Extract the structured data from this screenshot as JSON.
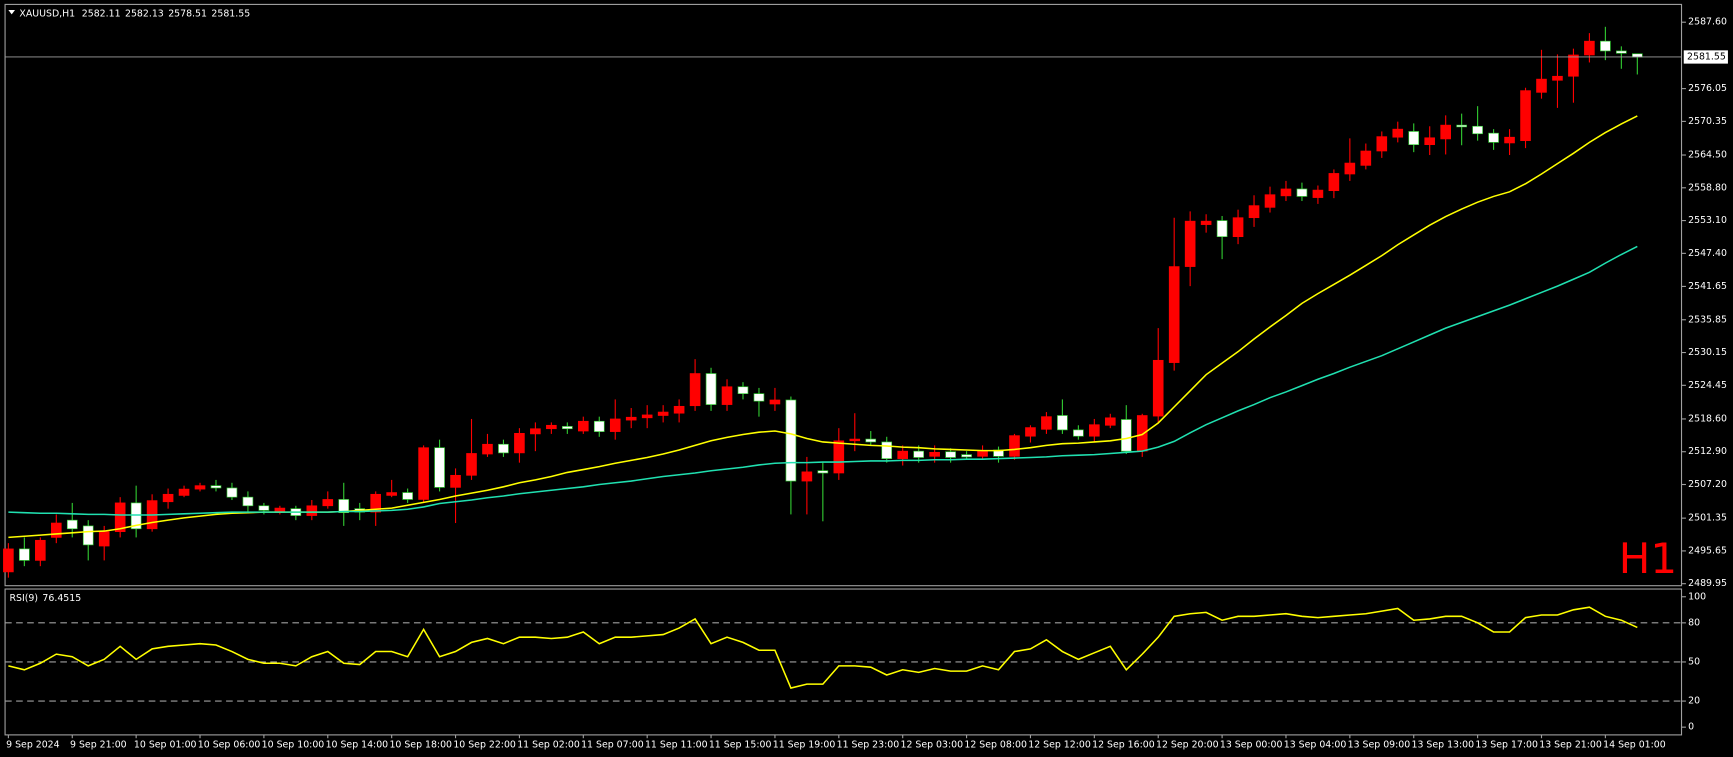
{
  "chart_data": [
    {
      "type": "candlestick",
      "title": "XAUUSD,H1",
      "watermark": "H1",
      "up_color": "#ff0000",
      "down_color": "#ffffff",
      "down_wick_color": "#32cd32",
      "price_line_color": "#a0a0a0",
      "categories": [
        "9 Sep 2024",
        null,
        null,
        null,
        "9 Sep 21:00",
        null,
        null,
        null,
        "10 Sep 01:00",
        null,
        null,
        null,
        "10 Sep 06:00",
        null,
        null,
        null,
        "10 Sep 10:00",
        null,
        null,
        null,
        "10 Sep 14:00",
        null,
        null,
        null,
        "10 Sep 18:00",
        null,
        null,
        null,
        "10 Sep 22:00",
        null,
        null,
        null,
        "11 Sep 02:00",
        null,
        null,
        null,
        "11 Sep 07:00",
        null,
        null,
        null,
        "11 Sep 11:00",
        null,
        null,
        null,
        "11 Sep 15:00",
        null,
        null,
        null,
        "11 Sep 19:00",
        null,
        null,
        null,
        "11 Sep 23:00",
        null,
        null,
        null,
        "12 Sep 03:00",
        null,
        null,
        null,
        "12 Sep 08:00",
        null,
        null,
        null,
        "12 Sep 12:00",
        null,
        null,
        null,
        "12 Sep 16:00",
        null,
        null,
        null,
        "12 Sep 20:00",
        null,
        null,
        null,
        "13 Sep 00:00",
        null,
        null,
        null,
        "13 Sep 04:00",
        null,
        null,
        null,
        "13 Sep 09:00",
        null,
        null,
        null,
        "13 Sep 13:00",
        null,
        null,
        null,
        "13 Sep 17:00",
        null,
        null,
        null,
        "13 Sep 21:00",
        null,
        null,
        null,
        "14 Sep 01:00",
        null,
        null
      ],
      "open": [
        2492,
        2496,
        2494,
        2498,
        2501,
        2500,
        2496.5,
        2499,
        2504,
        2499.5,
        2504.2,
        2505.3,
        2506.4,
        2507,
        2506.6,
        2505,
        2503.5,
        2502.5,
        2503,
        2501.8,
        2503.5,
        2504.6,
        2503,
        2502.4,
        2505.3,
        2505.8,
        2504.6,
        2513.6,
        2506.7,
        2508.8,
        2512.5,
        2514.2,
        2512.7,
        2516,
        2516.9,
        2517.3,
        2516.5,
        2518.2,
        2516.4,
        2518.4,
        2518.8,
        2519.2,
        2519.6,
        2520.9,
        2526.5,
        2521.1,
        2524.2,
        2523,
        2521.2,
        2521.9,
        2507.8,
        2509.6,
        2509.2,
        2514.8,
        2515.1,
        2514.6,
        2511.7,
        2513,
        2512.1,
        2512.9,
        2512.4,
        2512.1,
        2513.2,
        2512.1,
        2515.6,
        2516.8,
        2519.2,
        2516.7,
        2515.6,
        2517.5,
        2518.5,
        2513,
        2519.1,
        2528.4,
        2545.1,
        2552.4,
        2553.1,
        2550.3,
        2553.6,
        2555.4,
        2557.4,
        2558.6,
        2557.1,
        2558.3,
        2561.2,
        2562.7,
        2565.2,
        2567.6,
        2568.6,
        2566.3,
        2567.3,
        2569.7,
        2569.5,
        2568.3,
        2566.6,
        2567,
        2575.4,
        2577.5,
        2578.2,
        2581.9,
        2584.3,
        2582.6,
        2582.11
      ],
      "high": [
        2497,
        2498,
        2498,
        2502,
        2504,
        2501,
        2500,
        2505,
        2507,
        2505.5,
        2506.5,
        2507,
        2507.5,
        2508,
        2507.5,
        2506,
        2504,
        2503.5,
        2503.5,
        2504.5,
        2506,
        2507.5,
        2504,
        2506,
        2508,
        2506.5,
        2514,
        2515,
        2510,
        2518.6,
        2516,
        2515,
        2517,
        2518,
        2518,
        2518,
        2519,
        2519,
        2522,
        2520.5,
        2521,
        2521,
        2522,
        2529,
        2527.5,
        2525.5,
        2525,
        2524,
        2524,
        2522.5,
        2512,
        2511,
        2517,
        2519.6,
        2516.5,
        2515.5,
        2514,
        2514,
        2514,
        2513.5,
        2513,
        2514,
        2513.8,
        2516,
        2517.5,
        2519.8,
        2522,
        2517.5,
        2518.6,
        2519.5,
        2521,
        2519.5,
        2534.4,
        2553.6,
        2554.7,
        2554.2,
        2553.9,
        2555,
        2557.5,
        2559,
        2560,
        2559.7,
        2559.2,
        2562,
        2567.4,
        2566.5,
        2568.6,
        2570.3,
        2570,
        2569.5,
        2571.4,
        2571.7,
        2573,
        2569,
        2569,
        2576.2,
        2582.8,
        2582,
        2583,
        2585.7,
        2586.8,
        2583.4,
        2582.13
      ],
      "low": [
        2491,
        2493,
        2493,
        2497,
        2498,
        2494,
        2494,
        2498,
        2498,
        2499,
        2503,
        2505,
        2506,
        2506,
        2504.5,
        2502.5,
        2502,
        2502,
        2501,
        2501,
        2503,
        2500,
        2501,
        2500,
        2505,
        2504,
        2504,
        2506,
        2500.5,
        2508,
        2512,
        2512,
        2511,
        2513,
        2516,
        2516,
        2516,
        2515.5,
        2515,
        2517,
        2517,
        2518,
        2518,
        2520,
        2520,
        2520,
        2522,
        2519,
        2520,
        2502,
        2502,
        2500.8,
        2508,
        2513,
        2514,
        2511,
        2510.5,
        2511,
        2511,
        2511,
        2511.5,
        2511.5,
        2511,
        2511.5,
        2514.5,
        2516,
        2516,
        2515,
        2514.5,
        2517,
        2512.5,
        2512,
        2518,
        2527,
        2541.7,
        2551,
        2546.4,
        2549,
        2552,
        2554.5,
        2556.5,
        2556.5,
        2556,
        2557,
        2560,
        2562,
        2564,
        2566.7,
        2565,
        2564.5,
        2564.6,
        2566.2,
        2567,
        2565.4,
        2564.5,
        2565.7,
        2574.3,
        2572.7,
        2573.6,
        2580.6,
        2581,
        2579.5,
        2578.51
      ],
      "close": [
        2496,
        2494,
        2497.5,
        2500.5,
        2499.5,
        2496.7,
        2499,
        2504,
        2499.5,
        2504.4,
        2505.5,
        2506.4,
        2507,
        2506.6,
        2505,
        2503.5,
        2502.7,
        2503.1,
        2501.8,
        2503.5,
        2504.6,
        2502.3,
        2502.4,
        2505.5,
        2505.8,
        2504.6,
        2513.6,
        2506.7,
        2508.8,
        2512.6,
        2514.2,
        2512.7,
        2516.1,
        2516.9,
        2517.5,
        2516.9,
        2518.2,
        2516.4,
        2518.6,
        2518.9,
        2519.3,
        2519.8,
        2520.8,
        2526.5,
        2521.1,
        2524.2,
        2523,
        2521.7,
        2521.9,
        2507.8,
        2509.4,
        2509.2,
        2514.8,
        2515.1,
        2514.6,
        2511.7,
        2513,
        2511.9,
        2512.8,
        2511.9,
        2512,
        2513,
        2512.1,
        2515.7,
        2517.1,
        2519,
        2516.7,
        2515.6,
        2517.6,
        2518.8,
        2513,
        2519.2,
        2528.8,
        2545.1,
        2553,
        2553,
        2550.3,
        2553.6,
        2555.7,
        2557.6,
        2558.6,
        2557.3,
        2558.4,
        2561.3,
        2563.1,
        2565.2,
        2567.7,
        2569,
        2566.3,
        2567.5,
        2569.7,
        2569.4,
        2568.2,
        2566.7,
        2567.6,
        2575.7,
        2577.7,
        2578.2,
        2581.9,
        2584.3,
        2582.6,
        2582.2,
        2581.55
      ],
      "series": [
        {
          "color": "#ffff00",
          "values": [
            2498.0,
            2498.2,
            2498.4,
            2498.6,
            2498.8,
            2499.0,
            2499.1,
            2499.5,
            2500.1,
            2500.6,
            2501.0,
            2501.4,
            2501.7,
            2502.0,
            2502.2,
            2502.3,
            2502.4,
            2502.4,
            2502.4,
            2502.4,
            2502.4,
            2502.5,
            2502.7,
            2502.9,
            2503.1,
            2503.6,
            2504.1,
            2504.6,
            2505.2,
            2505.7,
            2506.2,
            2506.8,
            2507.5,
            2508.0,
            2508.6,
            2509.3,
            2509.8,
            2510.3,
            2510.9,
            2511.4,
            2511.9,
            2512.5,
            2513.2,
            2514.0,
            2514.8,
            2515.4,
            2515.9,
            2516.3,
            2516.5,
            2516.0,
            2515.2,
            2514.6,
            2514.4,
            2514.2,
            2514.0,
            2513.9,
            2513.7,
            2513.6,
            2513.4,
            2513.3,
            2513.2,
            2513.1,
            2513.1,
            2513.3,
            2513.6,
            2514.0,
            2514.3,
            2514.4,
            2514.6,
            2514.8,
            2515.2,
            2515.9,
            2517.9,
            2520.7,
            2523.5,
            2526.3,
            2528.3,
            2530.3,
            2532.5,
            2534.6,
            2536.6,
            2538.7,
            2540.4,
            2542.0,
            2543.6,
            2545.3,
            2547.0,
            2548.9,
            2550.6,
            2552.3,
            2553.8,
            2555.1,
            2556.3,
            2557.3,
            2558.1,
            2559.5,
            2561.2,
            2563.0,
            2564.8,
            2566.7,
            2568.4,
            2569.9,
            2571.3
          ]
        },
        {
          "color": "#20e0b0",
          "values": [
            2502.4,
            2502.3,
            2502.2,
            2502.2,
            2502.1,
            2502.0,
            2502.0,
            2501.9,
            2501.9,
            2501.9,
            2502.0,
            2502.1,
            2502.2,
            2502.3,
            2502.4,
            2502.4,
            2502.4,
            2502.4,
            2502.4,
            2502.4,
            2502.4,
            2502.5,
            2502.5,
            2502.6,
            2502.7,
            2502.9,
            2503.3,
            2503.9,
            2504.2,
            2504.5,
            2504.9,
            2505.2,
            2505.6,
            2505.9,
            2506.2,
            2506.5,
            2506.8,
            2507.2,
            2507.5,
            2507.8,
            2508.2,
            2508.6,
            2508.9,
            2509.2,
            2509.6,
            2509.9,
            2510.2,
            2510.6,
            2510.9,
            2511.0,
            2511.0,
            2511.1,
            2511.1,
            2511.2,
            2511.3,
            2511.3,
            2511.4,
            2511.4,
            2511.5,
            2511.5,
            2511.6,
            2511.6,
            2511.7,
            2511.8,
            2511.9,
            2512.0,
            2512.2,
            2512.3,
            2512.4,
            2512.6,
            2512.8,
            2513.0,
            2513.7,
            2514.7,
            2516.2,
            2517.6,
            2518.8,
            2520.0,
            2521.1,
            2522.3,
            2523.3,
            2524.4,
            2525.5,
            2526.5,
            2527.6,
            2528.6,
            2529.6,
            2530.8,
            2532.0,
            2533.2,
            2534.4,
            2535.4,
            2536.4,
            2537.4,
            2538.4,
            2539.5,
            2540.6,
            2541.7,
            2542.9,
            2544.1,
            2545.7,
            2547.2,
            2548.6
          ]
        }
      ],
      "ylim": [
        2489.6,
        2590.5
      ],
      "yticks": [
        {
          "value": 2587.6,
          "label": "2587.60"
        },
        {
          "value": 2576.05,
          "label": "2576.05"
        },
        {
          "value": 2570.35,
          "label": "2570.35"
        },
        {
          "value": 2564.5,
          "label": "2564.50"
        },
        {
          "value": 2558.8,
          "label": "2558.80"
        },
        {
          "value": 2553.1,
          "label": "2553.10"
        },
        {
          "value": 2547.4,
          "label": "2547.40"
        },
        {
          "value": 2541.65,
          "label": "2541.65"
        },
        {
          "value": 2535.85,
          "label": "2535.85"
        },
        {
          "value": 2530.15,
          "label": "2530.15"
        },
        {
          "value": 2524.45,
          "label": "2524.45"
        },
        {
          "value": 2518.6,
          "label": "2518.60"
        },
        {
          "value": 2512.9,
          "label": "2512.90"
        },
        {
          "value": 2507.2,
          "label": "2507.20"
        },
        {
          "value": 2501.35,
          "label": "2501.35"
        },
        {
          "value": 2495.65,
          "label": "2495.65"
        },
        {
          "value": 2489.95,
          "label": "2489.95"
        }
      ]
    },
    {
      "type": "line",
      "title": "RSI(9)",
      "grid": "dashed",
      "series": [
        {
          "color": "#ffff00",
          "values": [
            47,
            44,
            49,
            56,
            54,
            47,
            52,
            62,
            52,
            60,
            62,
            63,
            64,
            63,
            58,
            52,
            49,
            49,
            47,
            54,
            58,
            49,
            48,
            58,
            58,
            54,
            75,
            54,
            58,
            65,
            68,
            64,
            69,
            69,
            68,
            69,
            73,
            64,
            69,
            69,
            70,
            71,
            76,
            83,
            64,
            69,
            65,
            59,
            59,
            30,
            33,
            33,
            47,
            47,
            46,
            40,
            44,
            42,
            45,
            43,
            43,
            47,
            44,
            58,
            60,
            67,
            58,
            52,
            57,
            62,
            44,
            56,
            69,
            85,
            87,
            88,
            82,
            85,
            85,
            86,
            87,
            85,
            84,
            85,
            86,
            87,
            89,
            91,
            82,
            83,
            85,
            85,
            80,
            73,
            73,
            84,
            86,
            86,
            90,
            92,
            85,
            82,
            76.4515
          ]
        }
      ],
      "ylim": [
        0,
        100
      ],
      "yticks": [
        0,
        20,
        50,
        80,
        100
      ]
    }
  ]
}
